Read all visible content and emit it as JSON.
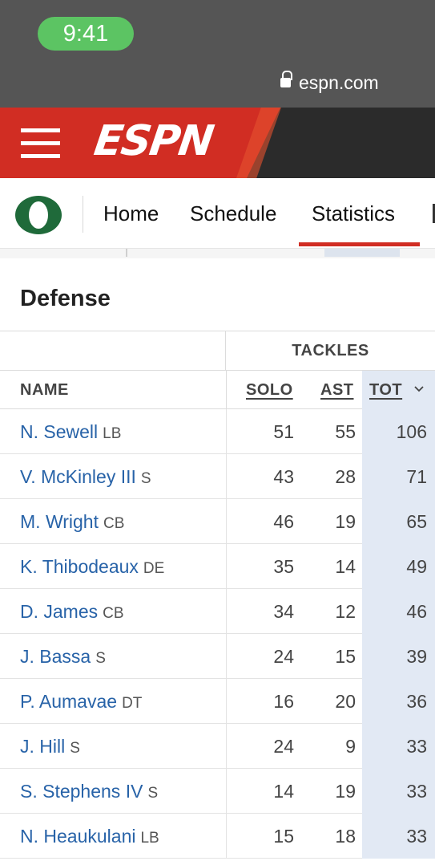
{
  "status_bar": {
    "time": "9:41",
    "url": "espn.com"
  },
  "header": {
    "logo_text": "ESPN",
    "brand_color": "#d12d23"
  },
  "team_nav": {
    "tabs": [
      {
        "label": "Home",
        "active": false
      },
      {
        "label": "Schedule",
        "active": false
      },
      {
        "label": "Statistics",
        "active": true
      }
    ],
    "logo_color": "#1f6a3a"
  },
  "section": {
    "title": "Defense"
  },
  "table": {
    "group_label": "TACKLES",
    "columns": {
      "name": "NAME",
      "solo": "SOLO",
      "ast": "AST",
      "tot": "TOT"
    },
    "sorted_by": "TOT",
    "rows": [
      {
        "name": "N. Sewell",
        "pos": "LB",
        "solo": "51",
        "ast": "55",
        "tot": "106"
      },
      {
        "name": "V. McKinley III",
        "pos": "S",
        "solo": "43",
        "ast": "28",
        "tot": "71"
      },
      {
        "name": "M. Wright",
        "pos": "CB",
        "solo": "46",
        "ast": "19",
        "tot": "65"
      },
      {
        "name": "K. Thibodeaux",
        "pos": "DE",
        "solo": "35",
        "ast": "14",
        "tot": "49"
      },
      {
        "name": "D. James",
        "pos": "CB",
        "solo": "34",
        "ast": "12",
        "tot": "46"
      },
      {
        "name": "J. Bassa",
        "pos": "S",
        "solo": "24",
        "ast": "15",
        "tot": "39"
      },
      {
        "name": "P. Aumavae",
        "pos": "DT",
        "solo": "16",
        "ast": "20",
        "tot": "36"
      },
      {
        "name": "J. Hill",
        "pos": "S",
        "solo": "24",
        "ast": "9",
        "tot": "33"
      },
      {
        "name": "S. Stephens IV",
        "pos": "S",
        "solo": "14",
        "ast": "19",
        "tot": "33"
      },
      {
        "name": "N. Heaukulani",
        "pos": "LB",
        "solo": "15",
        "ast": "18",
        "tot": "33"
      }
    ]
  }
}
